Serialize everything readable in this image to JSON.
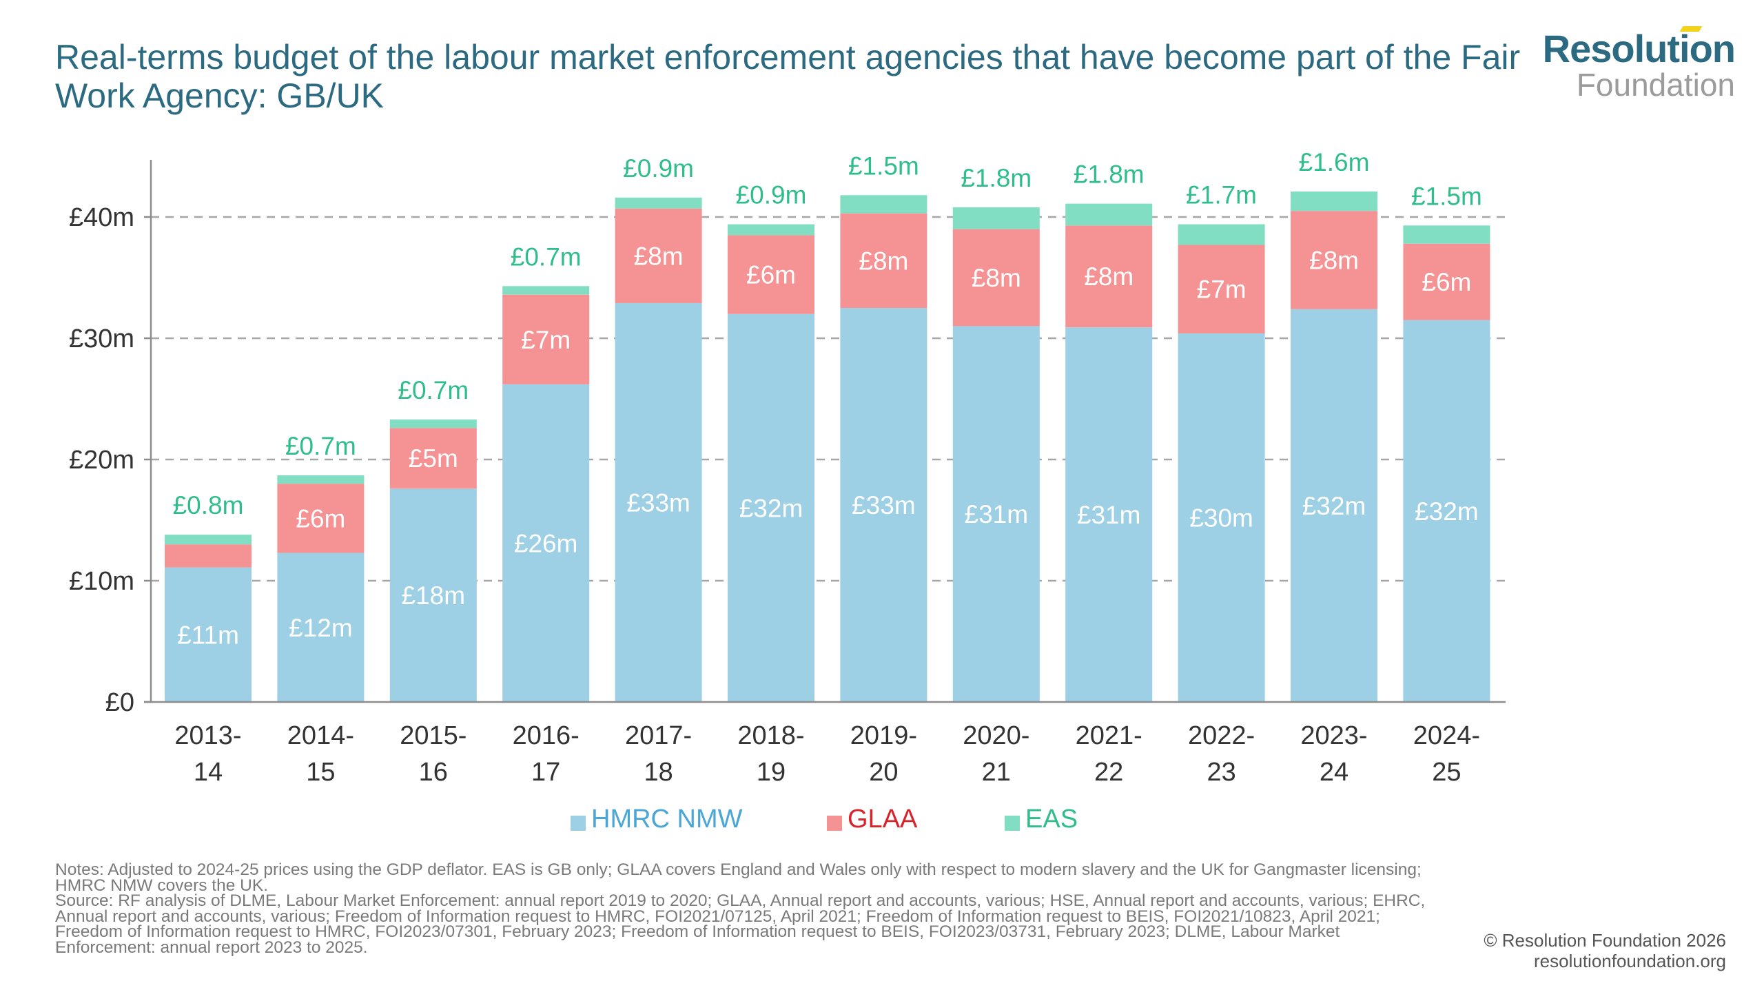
{
  "header": {
    "title": "Real-terms budget of the labour market enforcement agencies that have become part of the Fair Work Agency: GB/UK",
    "logo_line1": "Resolution",
    "logo_line2": "Foundation"
  },
  "colors": {
    "hmrc": "#9dcfe5",
    "glaa": "#f59293",
    "eas": "#81dec2",
    "hmrc_text": "#49a6d6",
    "glaa_text": "#d9232b",
    "eas_text": "#2fbd8b",
    "title": "#2c6a82"
  },
  "chart_data": {
    "type": "bar",
    "stacked": true,
    "title": "Real-terms budget of the labour market enforcement agencies that have become part of the Fair Work Agency: GB/UK",
    "xlabel": "",
    "ylabel": "",
    "ylim": [
      0,
      45
    ],
    "yticks": [
      0,
      10,
      20,
      30,
      40
    ],
    "ytick_labels": [
      "£0",
      "£10m",
      "£20m",
      "£30m",
      "£40m"
    ],
    "grid": "horizontal dashed",
    "legend_position": "bottom",
    "categories": [
      [
        "2013-",
        "14"
      ],
      [
        "2014-",
        "15"
      ],
      [
        "2015-",
        "16"
      ],
      [
        "2016-",
        "17"
      ],
      [
        "2017-",
        "18"
      ],
      [
        "2018-",
        "19"
      ],
      [
        "2019-",
        "20"
      ],
      [
        "2020-",
        "21"
      ],
      [
        "2021-",
        "22"
      ],
      [
        "2022-",
        "23"
      ],
      [
        "2023-",
        "24"
      ],
      [
        "2024-",
        "25"
      ]
    ],
    "series": [
      {
        "name": "HMRC NMW",
        "key": "hmrc",
        "values": [
          11.1,
          12.3,
          17.6,
          26.2,
          32.9,
          32.0,
          32.5,
          31.0,
          30.9,
          30.4,
          32.4,
          31.5
        ],
        "labels": [
          "£11m",
          "£12m",
          "£18m",
          "£26m",
          "£33m",
          "£32m",
          "£33m",
          "£31m",
          "£31m",
          "£30m",
          "£32m",
          "£32m"
        ]
      },
      {
        "name": "GLAA",
        "key": "glaa",
        "values": [
          1.9,
          5.7,
          5.0,
          7.4,
          7.8,
          6.5,
          7.8,
          8.0,
          8.4,
          7.3,
          8.1,
          6.3
        ],
        "labels": [
          "",
          "£6m",
          "£5m",
          "£7m",
          "£8m",
          "£6m",
          "£8m",
          "£8m",
          "£8m",
          "£7m",
          "£8m",
          "£6m"
        ]
      },
      {
        "name": "EAS",
        "key": "eas",
        "values": [
          0.8,
          0.7,
          0.7,
          0.7,
          0.9,
          0.9,
          1.5,
          1.8,
          1.8,
          1.7,
          1.6,
          1.5
        ],
        "labels": [
          "£0.8m",
          "£0.7m",
          "£0.7m",
          "£0.7m",
          "£0.9m",
          "£0.9m",
          "£1.5m",
          "£1.8m",
          "£1.8m",
          "£1.7m",
          "£1.6m",
          "£1.5m"
        ]
      }
    ]
  },
  "legend": [
    {
      "label": "HMRC NMW",
      "key": "hmrc"
    },
    {
      "label": "GLAA",
      "key": "glaa"
    },
    {
      "label": "EAS",
      "key": "eas"
    }
  ],
  "footer": {
    "notes": "Notes: Adjusted to 2024-25 prices using the GDP deflator. EAS is GB only; GLAA covers England and Wales only with respect to modern slavery and the UK for Gangmaster licensing; HMRC NMW covers the UK.",
    "source": "Source: RF analysis of DLME, Labour Market Enforcement: annual report 2019 to 2020; GLAA, Annual report and accounts, various; HSE, Annual report and accounts, various; EHRC, Annual report and accounts, various; Freedom of Information request to HMRC, FOI2021/07125, April 2021; Freedom of Information request to BEIS, FOI2021/10823, April 2021; Freedom of Information request to HMRC, FOI2023/07301, February 2023; Freedom of Information request to BEIS, FOI2023/03731, February 2023; DLME, Labour Market Enforcement: annual report 2023 to 2025.",
    "copyright": "© Resolution Foundation 2026",
    "website": "resolutionfoundation.org"
  }
}
